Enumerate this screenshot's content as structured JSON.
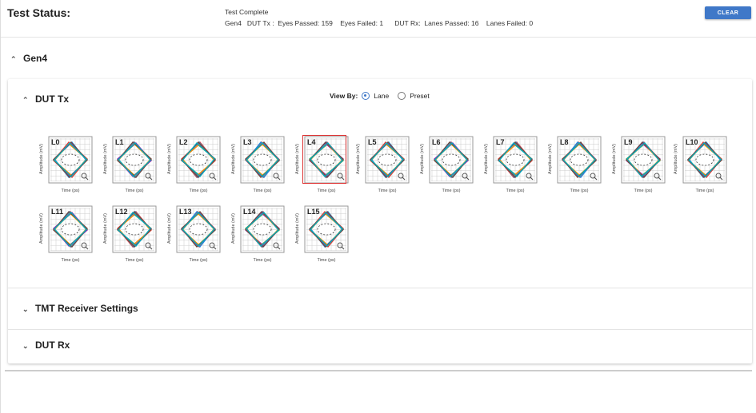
{
  "status": {
    "title": "Test Status:",
    "line1": "Test Complete",
    "line2": "Gen4   DUT Tx :  Eyes Passed: 159    Eyes Failed: 1      DUT Rx:  Lanes Passed: 16    Lanes Failed: 0",
    "clear_label": "CLEAR"
  },
  "gen4": {
    "label": "Gen4"
  },
  "dut_tx": {
    "label": "DUT Tx",
    "view_by": "View By:",
    "options": [
      "Lane",
      "Preset"
    ],
    "selected": "Lane",
    "x_axis": "Time (ps)",
    "y_axis": "Amplitude (mV)",
    "lanes": [
      "L0",
      "L1",
      "L2",
      "L3",
      "L4",
      "L5",
      "L6",
      "L7",
      "L8",
      "L9",
      "L10",
      "L11",
      "L12",
      "L13",
      "L14",
      "L15"
    ],
    "selected_lane": "L4",
    "eye_colors": [
      "#e53935",
      "#fdd835",
      "#43a047",
      "#1e88e5",
      "#8e24aa",
      "#fb8c00",
      "#6d4c41",
      "#00acc1"
    ]
  },
  "tmt": {
    "label": "TMT Receiver Settings"
  },
  "dut_rx": {
    "label": "DUT Rx"
  }
}
